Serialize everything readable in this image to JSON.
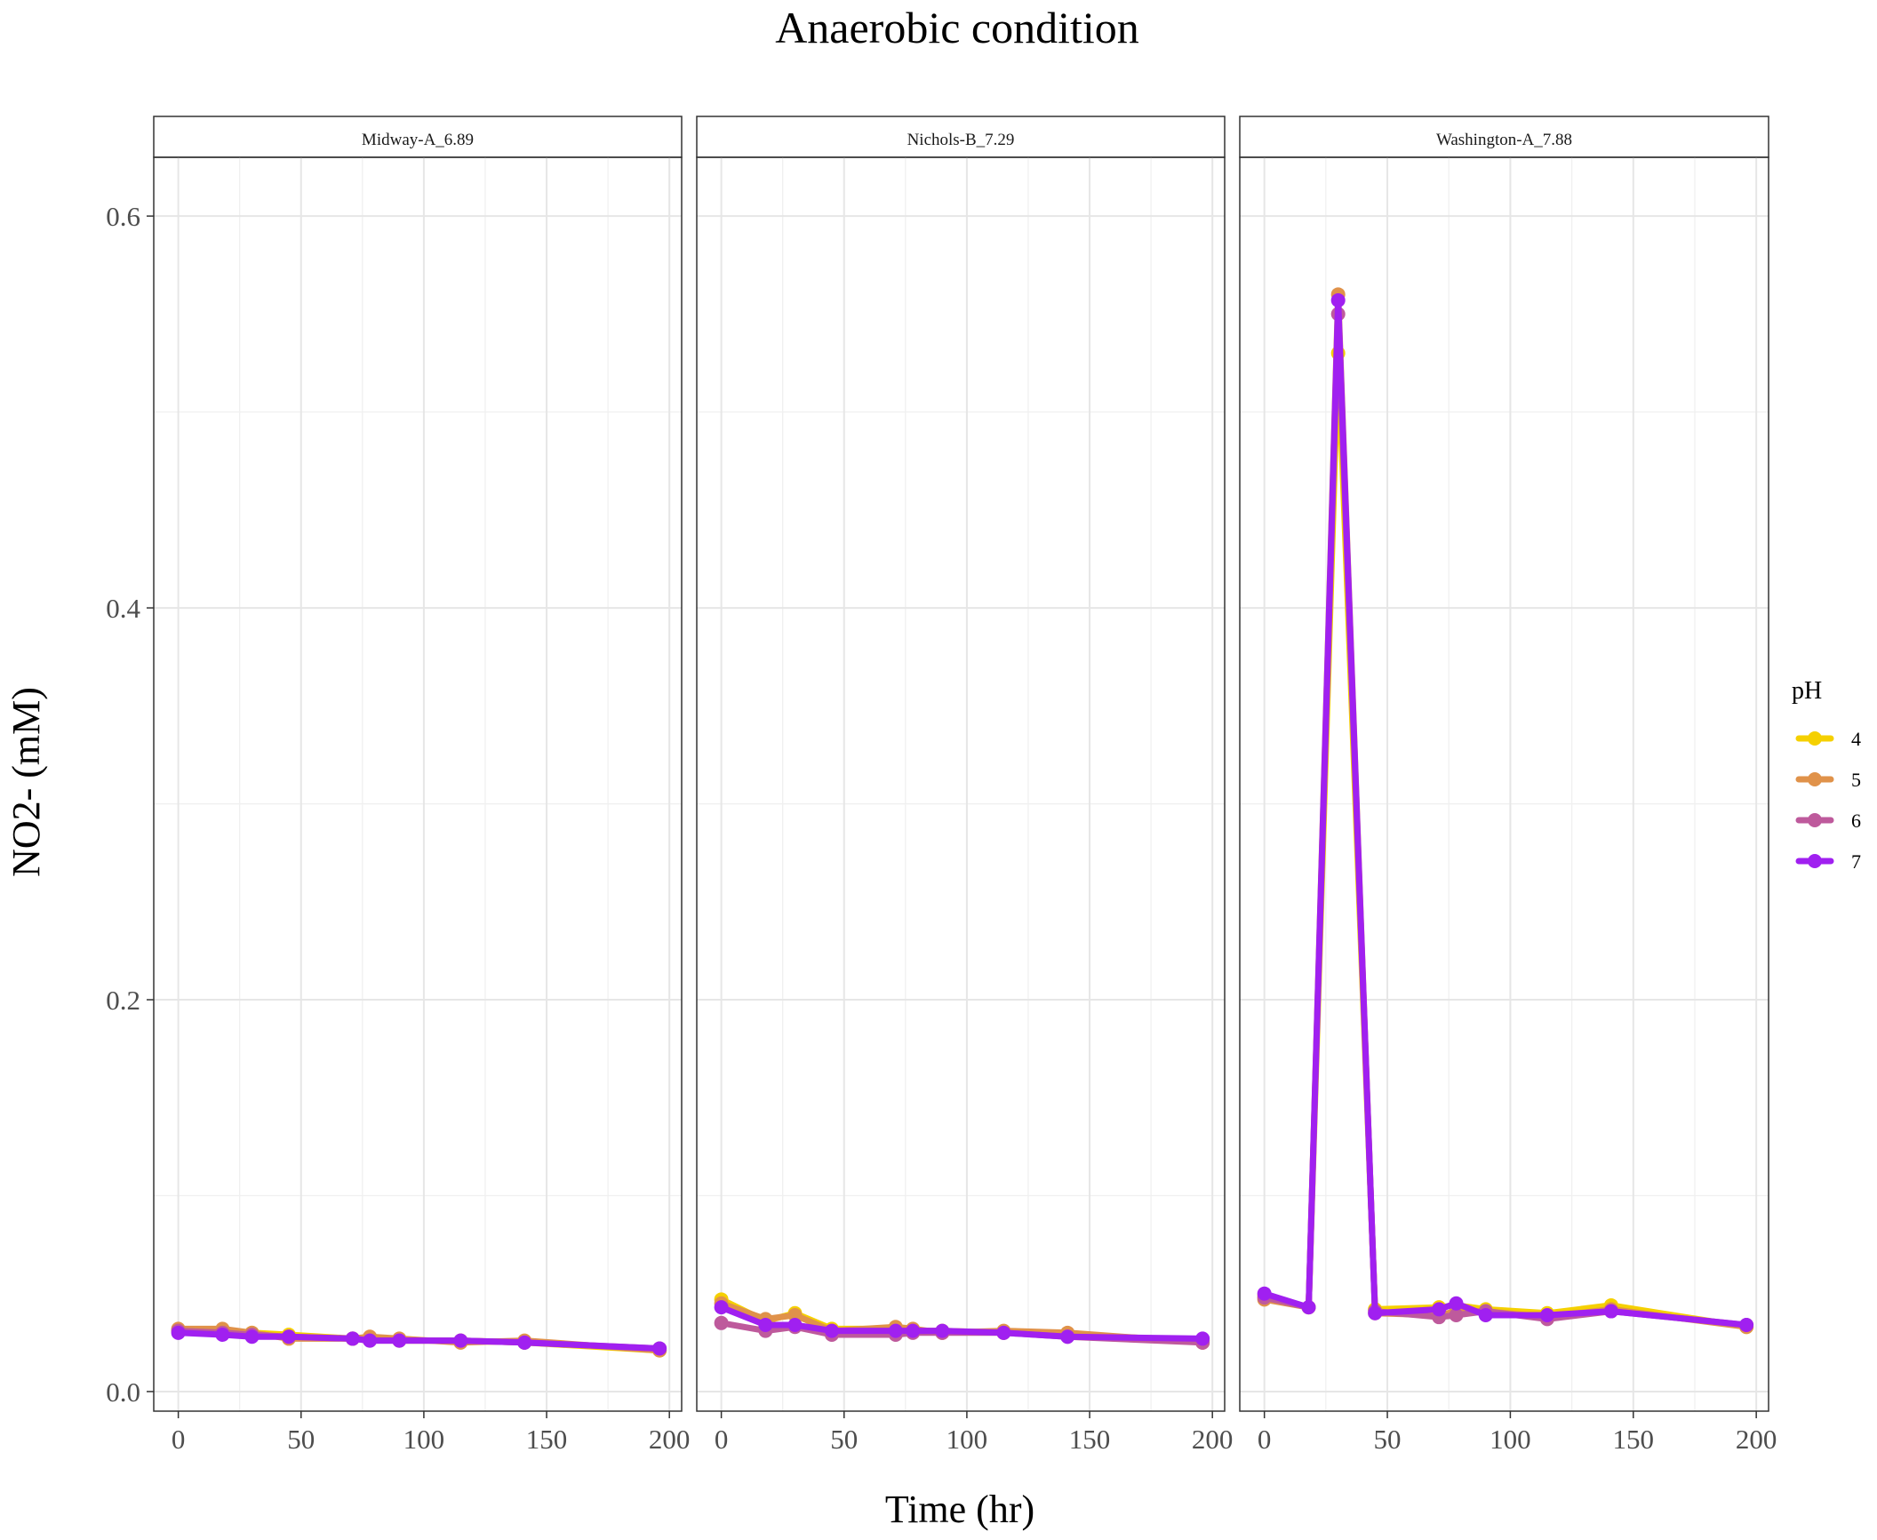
{
  "chart_data": {
    "type": "line",
    "title": "Anaerobic condition",
    "xlabel": "Time (hr)",
    "ylabel": "NO2- (mM)",
    "xlim": [
      -10,
      205
    ],
    "ylim": [
      -0.01,
      0.63
    ],
    "x_ticks": [
      0,
      50,
      100,
      150,
      200
    ],
    "y_ticks": [
      0.0,
      0.2,
      0.4,
      0.6
    ],
    "y_tick_labels": [
      "0.0",
      "0.2",
      "0.4",
      "0.6"
    ],
    "grid": true,
    "legend": {
      "title": "pH",
      "placement": "right",
      "entries": [
        "4",
        "5",
        "6",
        "7"
      ]
    },
    "series_colors": {
      "4": "#F5D000",
      "5": "#E0924A",
      "6": "#BE5A9C",
      "7": "#A020F0"
    },
    "panels": [
      {
        "label": "Midway-A_6.89",
        "series": [
          {
            "name": "4",
            "x": [
              0,
              18,
              30,
              45,
              71,
              78,
              90,
              115,
              141,
              196
            ],
            "y": [
              0.031,
              0.031,
              0.03,
              0.029,
              0.027,
              0.027,
              0.026,
              0.026,
              0.025,
              0.021
            ]
          },
          {
            "name": "5",
            "x": [
              0,
              18,
              30,
              45,
              71,
              78,
              90,
              115,
              141,
              196
            ],
            "y": [
              0.032,
              0.032,
              0.03,
              0.027,
              0.027,
              0.028,
              0.027,
              0.025,
              0.026,
              0.021
            ]
          },
          {
            "name": "6",
            "x": [
              0,
              18,
              30,
              45,
              71,
              78,
              90,
              115,
              141,
              196
            ],
            "y": [
              0.031,
              0.03,
              0.029,
              0.028,
              0.027,
              0.026,
              0.026,
              0.026,
              0.025,
              0.022
            ]
          },
          {
            "name": "7",
            "x": [
              0,
              18,
              30,
              45,
              71,
              78,
              90,
              115,
              141,
              196
            ],
            "y": [
              0.03,
              0.029,
              0.028,
              0.028,
              0.027,
              0.026,
              0.026,
              0.026,
              0.025,
              0.022
            ]
          }
        ]
      },
      {
        "label": "Nichols-B_7.29",
        "series": [
          {
            "name": "4",
            "x": [
              0,
              18,
              30,
              45,
              71,
              78,
              90,
              115,
              141,
              196
            ],
            "y": [
              0.047,
              0.036,
              0.04,
              0.032,
              0.032,
              0.031,
              0.031,
              0.03,
              0.029,
              0.026
            ]
          },
          {
            "name": "5",
            "x": [
              0,
              18,
              30,
              45,
              71,
              78,
              90,
              115,
              141,
              196
            ],
            "y": [
              0.045,
              0.037,
              0.039,
              0.031,
              0.033,
              0.032,
              0.03,
              0.031,
              0.03,
              0.025
            ]
          },
          {
            "name": "6",
            "x": [
              0,
              18,
              30,
              45,
              71,
              78,
              90,
              115,
              141,
              196
            ],
            "y": [
              0.035,
              0.031,
              0.033,
              0.029,
              0.029,
              0.03,
              0.03,
              0.03,
              0.028,
              0.025
            ]
          },
          {
            "name": "7",
            "x": [
              0,
              18,
              30,
              45,
              71,
              78,
              90,
              115,
              141,
              196
            ],
            "y": [
              0.043,
              0.034,
              0.034,
              0.031,
              0.031,
              0.031,
              0.031,
              0.03,
              0.028,
              0.027
            ]
          }
        ]
      },
      {
        "label": "Washington-A_7.88",
        "series": [
          {
            "name": "4",
            "x": [
              0,
              18,
              30,
              45,
              71,
              78,
              90,
              115,
              141,
              196
            ],
            "y": [
              0.049,
              0.043,
              0.53,
              0.042,
              0.043,
              0.044,
              0.042,
              0.04,
              0.044,
              0.033
            ]
          },
          {
            "name": "5",
            "x": [
              0,
              18,
              30,
              45,
              71,
              78,
              90,
              115,
              141,
              196
            ],
            "y": [
              0.047,
              0.043,
              0.56,
              0.04,
              0.039,
              0.041,
              0.041,
              0.038,
              0.042,
              0.033
            ]
          },
          {
            "name": "6",
            "x": [
              0,
              18,
              30,
              45,
              71,
              78,
              90,
              115,
              141,
              196
            ],
            "y": [
              0.048,
              0.043,
              0.55,
              0.041,
              0.038,
              0.039,
              0.041,
              0.037,
              0.041,
              0.034
            ]
          },
          {
            "name": "7",
            "x": [
              0,
              18,
              30,
              45,
              71,
              78,
              90,
              115,
              141,
              196
            ],
            "y": [
              0.05,
              0.043,
              0.557,
              0.04,
              0.042,
              0.045,
              0.039,
              0.039,
              0.041,
              0.034
            ]
          }
        ]
      }
    ]
  }
}
